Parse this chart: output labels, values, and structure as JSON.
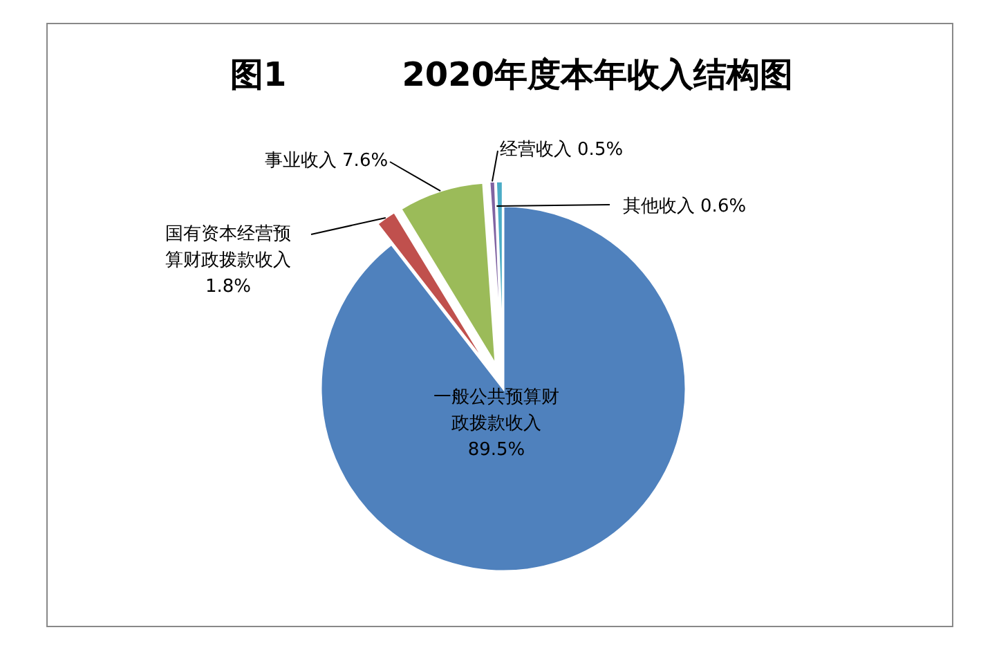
{
  "chart_data": {
    "type": "pie",
    "title": "图1          2020年度本年收入结构图",
    "categories": [
      "一般公共预算财政拨款收入",
      "国有资本经营预算财政拨款收入",
      "事业收入",
      "经营收入",
      "其他收入"
    ],
    "values": [
      89.5,
      1.8,
      7.6,
      0.5,
      0.6
    ],
    "colors": [
      "#4f81bd",
      "#c0504d",
      "#9bbb59",
      "#8064a2",
      "#4bacc6"
    ],
    "value_labels": [
      "89.5%",
      "1.8%",
      "7.6%",
      "0.5%",
      "0.6%"
    ]
  }
}
